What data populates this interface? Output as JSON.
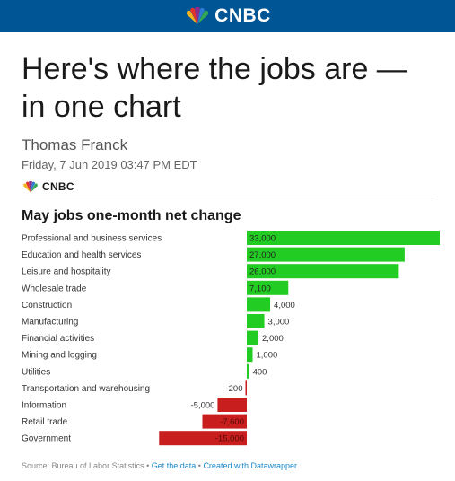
{
  "header": {
    "brand": "CNBC"
  },
  "article": {
    "headline": "Here's where the jobs are — in one chart",
    "author": "Thomas Franck",
    "date": "Friday, 7 Jun 2019 03:47 PM EDT",
    "brand_label": "CNBC"
  },
  "colors": {
    "positive": "#22cc22",
    "negative": "#c81e1e",
    "header": "#005594"
  },
  "chart_data": {
    "type": "bar",
    "orientation": "horizontal",
    "title": "May jobs one-month net change",
    "categories": [
      "Professional and business services",
      "Education and health services",
      "Leisure and hospitality",
      "Wholesale trade",
      "Construction",
      "Manufacturing",
      "Financial activities",
      "Mining and logging",
      "Utilities",
      "Transportation and warehousing",
      "Information",
      "Retail trade",
      "Government"
    ],
    "values": [
      33000,
      27000,
      26000,
      7100,
      4000,
      3000,
      2000,
      1000,
      400,
      -200,
      -5000,
      -7600,
      -15000
    ],
    "value_labels": [
      "33,000",
      "27,000",
      "26,000",
      "7,100",
      "4,000",
      "3,000",
      "2,000",
      "1,000",
      "400",
      "-200",
      "-5,000",
      "-7,600",
      "-15,000"
    ],
    "xlim": [
      -15000,
      33000
    ]
  },
  "source": {
    "prefix": "Source: Bureau of Labor Statistics",
    "separator": " • ",
    "get_data": "Get the data",
    "created_with": "Created with Datawrapper"
  }
}
